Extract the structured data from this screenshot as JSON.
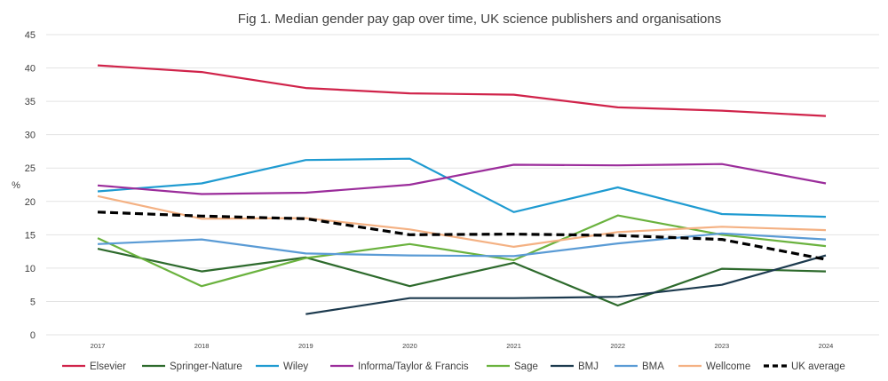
{
  "chart_data": {
    "type": "line",
    "title": "Fig 1. Median gender pay gap over time, UK science publishers and organisations",
    "ylabel": "%",
    "xlabel": "",
    "ylim": [
      0,
      45
    ],
    "yticks": [
      0,
      5,
      10,
      15,
      20,
      25,
      30,
      35,
      40,
      45
    ],
    "grid": true,
    "legend_position": "bottom",
    "x": [
      "2017",
      "2018",
      "2019",
      "2020",
      "2021",
      "2022",
      "2023",
      "2024"
    ],
    "series": [
      {
        "name": "Elsevier",
        "color": "#d0234a",
        "dashed": false,
        "values": [
          40.4,
          39.4,
          37.0,
          36.2,
          36.0,
          34.1,
          33.6,
          32.8
        ]
      },
      {
        "name": "Springer-Nature",
        "color": "#2d6a2c",
        "dashed": false,
        "values": [
          12.9,
          9.5,
          11.6,
          7.3,
          10.8,
          4.4,
          9.9,
          9.5
        ]
      },
      {
        "name": "Wiley",
        "color": "#1f9bd1",
        "dashed": false,
        "values": [
          21.5,
          22.7,
          26.2,
          26.4,
          18.4,
          22.1,
          18.1,
          17.7
        ]
      },
      {
        "name": "Informa/Taylor & Francis",
        "color": "#9b2d9b",
        "dashed": false,
        "values": [
          22.4,
          21.1,
          21.3,
          22.5,
          25.5,
          25.4,
          25.6,
          22.7
        ]
      },
      {
        "name": "Sage",
        "color": "#6ab23e",
        "dashed": false,
        "values": [
          14.5,
          7.3,
          11.5,
          13.6,
          11.2,
          17.9,
          15.0,
          13.3
        ]
      },
      {
        "name": "BMJ",
        "color": "#1c3a4e",
        "dashed": false,
        "values": [
          null,
          null,
          3.1,
          5.5,
          5.5,
          5.7,
          7.5,
          11.9
        ]
      },
      {
        "name": "BMA",
        "color": "#5a9bd5",
        "dashed": false,
        "values": [
          13.6,
          14.3,
          12.2,
          11.9,
          11.8,
          13.7,
          15.2,
          14.3
        ]
      },
      {
        "name": "Wellcome",
        "color": "#f4b183",
        "dashed": false,
        "values": [
          20.8,
          17.4,
          17.5,
          15.8,
          13.2,
          15.4,
          16.2,
          15.7
        ]
      },
      {
        "name": "UK average",
        "color": "#000000",
        "dashed": true,
        "values": [
          18.4,
          17.8,
          17.4,
          15.0,
          15.1,
          14.9,
          14.3,
          11.3
        ]
      }
    ]
  }
}
